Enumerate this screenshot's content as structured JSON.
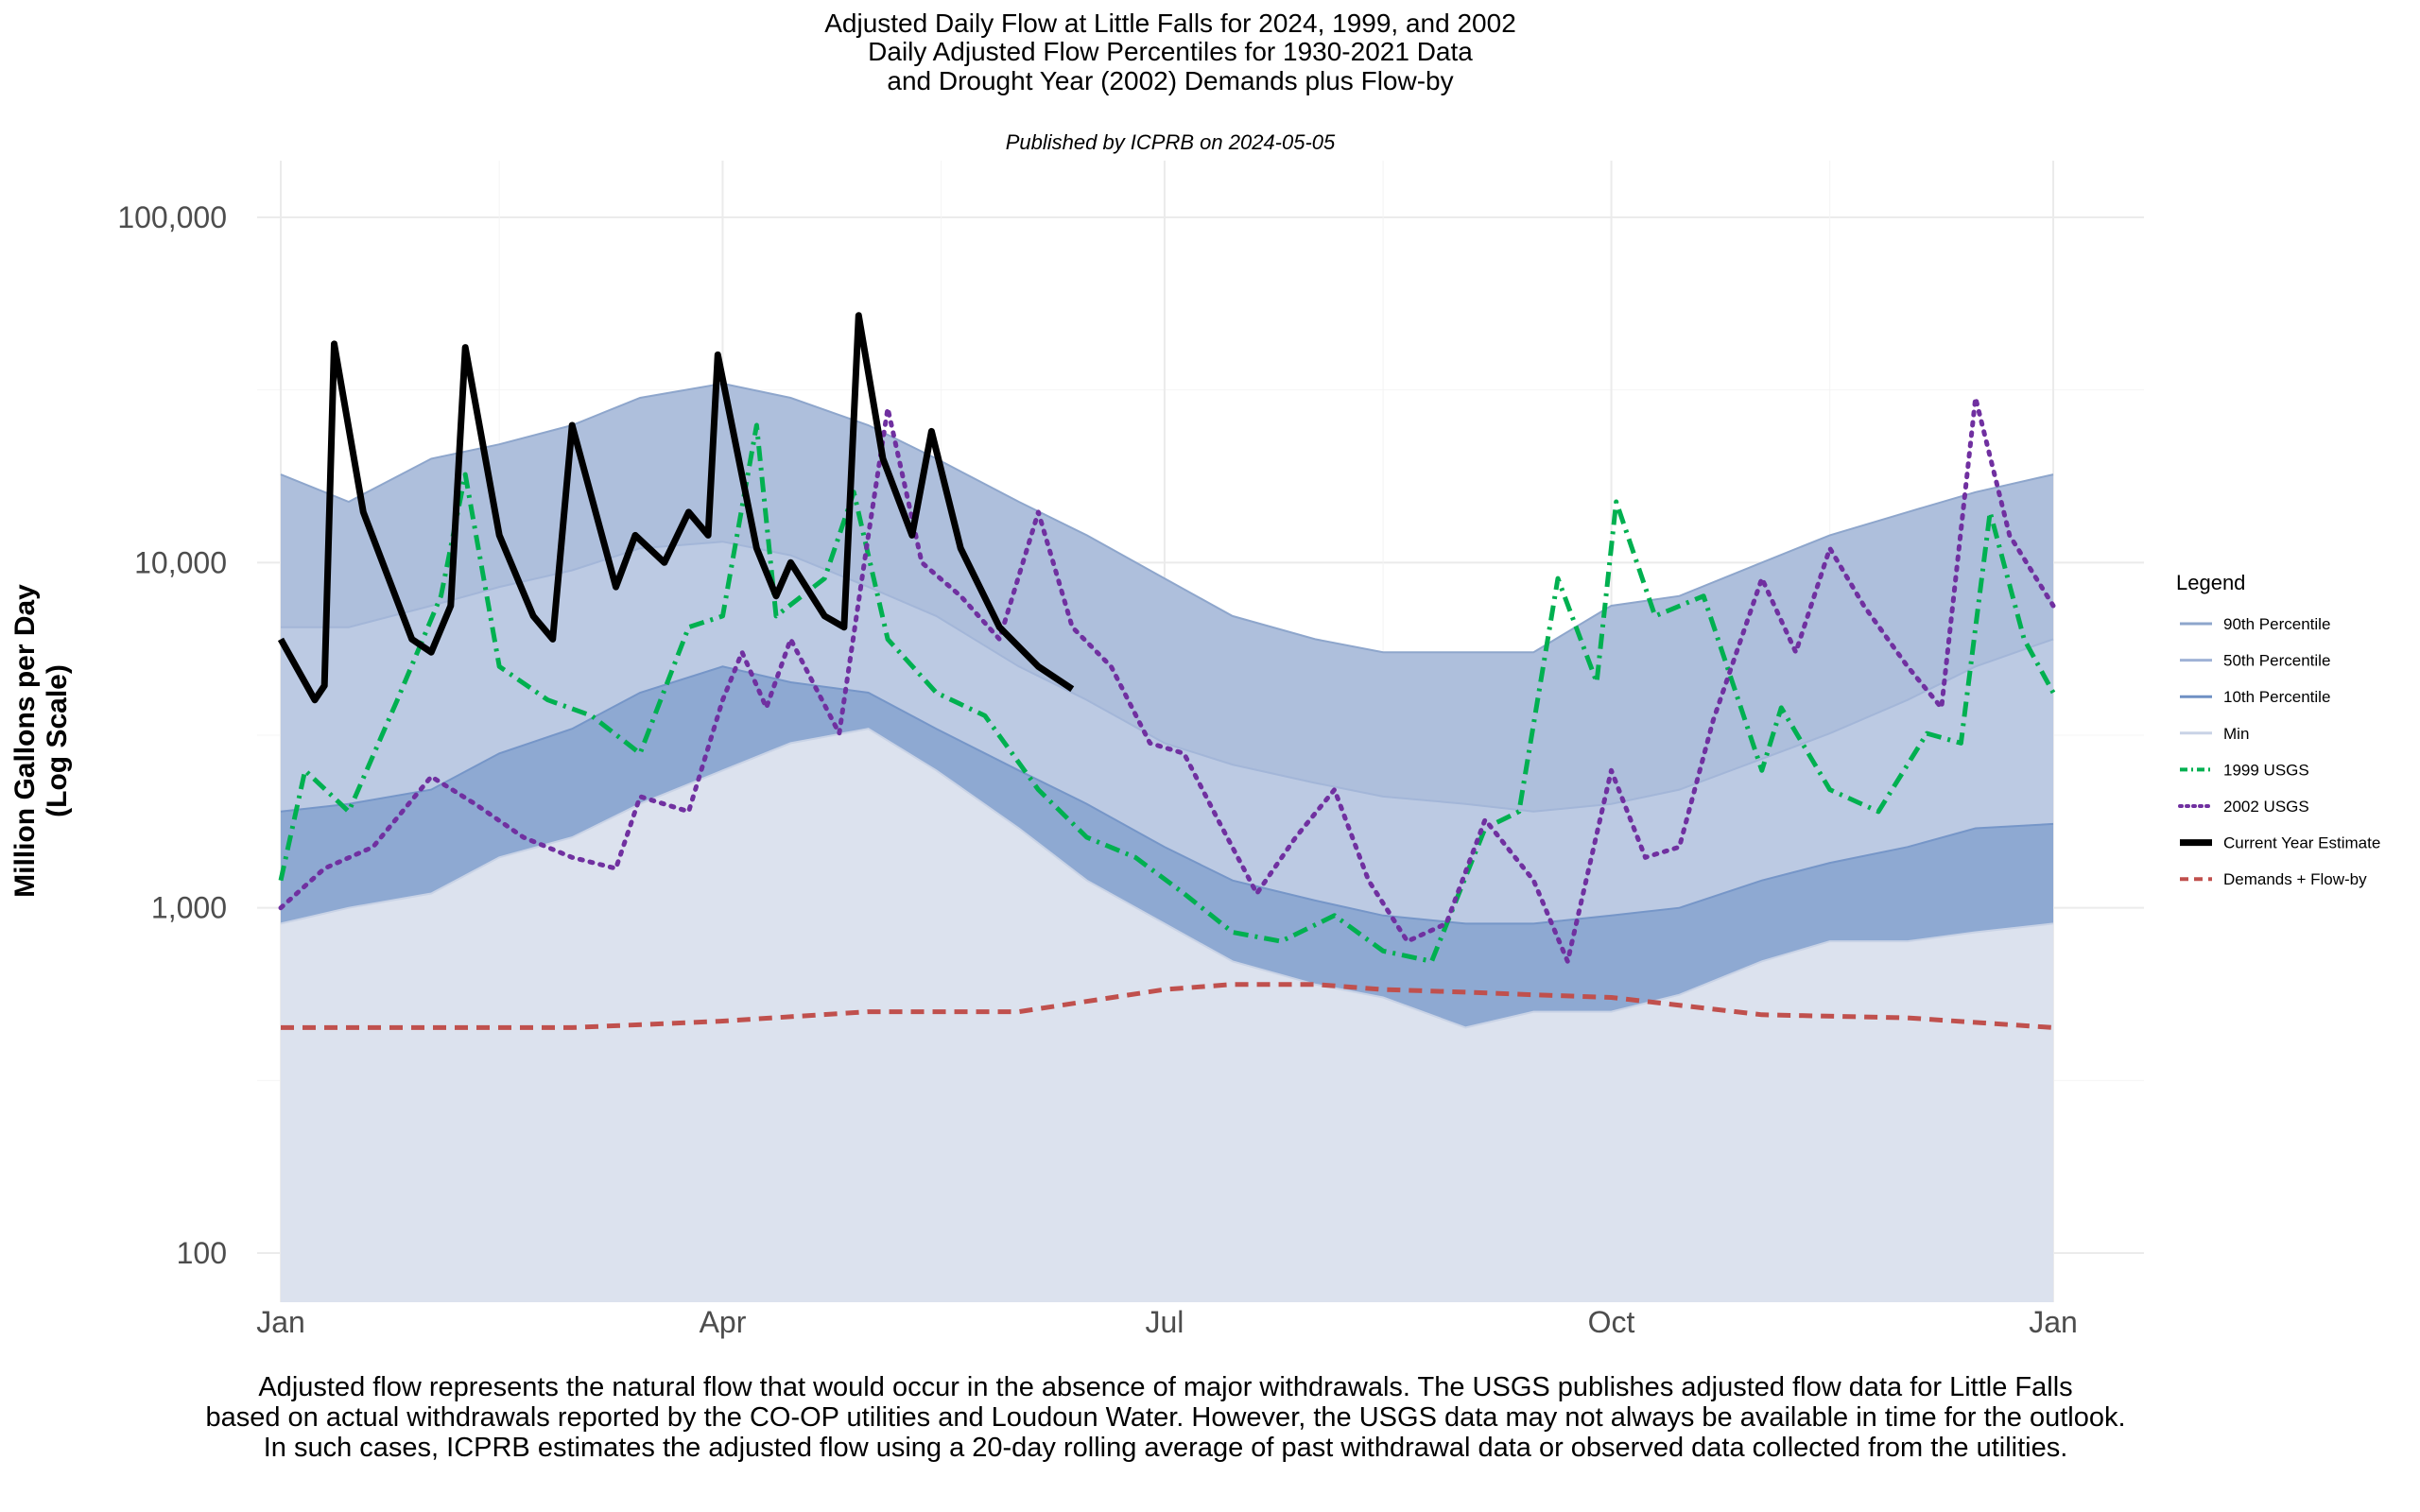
{
  "title_lines": [
    "Adjusted Daily Flow at Little Falls for 2024, 1999, and 2002",
    "Daily Adjusted Flow Percentiles for 1930-2021 Data",
    "and Drought Year (2002) Demands plus Flow-by"
  ],
  "subtitle": "Published by ICPRB on 2024-05-05",
  "caption_lines": [
    "Adjusted flow represents the natural flow that would occur in the absence of major withdrawals. The USGS publishes adjusted flow data for Little Falls",
    "based on actual withdrawals reported by the CO-OP utilities and Loudoun Water. However, the USGS data may not always be available in time for the outlook.",
    "In such cases, ICPRB estimates the adjusted flow using a 20-day rolling average of past withdrawal data or observed data collected from the utilities."
  ],
  "chart_data": {
    "type": "area",
    "ylabel": [
      "Million Gallons per Day",
      "(Log Scale)"
    ],
    "xlabel": "",
    "y_scale": "log",
    "ylim": [
      70,
      150000
    ],
    "xlim": [
      "2024-01-01",
      "2024-12-31"
    ],
    "grid": true,
    "y_ticks": [
      {
        "value": 100,
        "label": "100"
      },
      {
        "value": 1000,
        "label": "1,000"
      },
      {
        "value": 10000,
        "label": "10,000"
      },
      {
        "value": 100000,
        "label": "100,000"
      }
    ],
    "x_ticks": [
      {
        "date": "2024-01-01",
        "label": "Jan"
      },
      {
        "date": "2024-04-01",
        "label": "Apr"
      },
      {
        "date": "2024-07-01",
        "label": "Jul"
      },
      {
        "date": "2024-10-01",
        "label": "Oct"
      },
      {
        "date": "2024-12-31",
        "label": "Jan"
      }
    ],
    "legend": {
      "title": "Legend",
      "position": "right",
      "entries": [
        {
          "label": "90th Percentile",
          "color": "#8ea6cc",
          "style": "solid"
        },
        {
          "label": "50th Percentile",
          "color": "#9fb2d6",
          "style": "solid"
        },
        {
          "label": "10th Percentile",
          "color": "#6f90c4",
          "style": "solid"
        },
        {
          "label": "Min",
          "color": "#c9d3e6",
          "style": "solid"
        },
        {
          "label": "1999 USGS",
          "color": "#00b050",
          "style": "dotdash"
        },
        {
          "label": "2002 USGS",
          "color": "#7030a0",
          "style": "dotted"
        },
        {
          "label": "Current Year Estimate",
          "color": "#000000",
          "style": "solid-thick"
        },
        {
          "label": "Demands + Flow-by",
          "color": "#c0504d",
          "style": "dashed"
        }
      ]
    },
    "series": [
      {
        "name": "90th Percentile",
        "kind": "band",
        "points": [
          [
            "2024-01-01",
            18000
          ],
          [
            "2024-01-15",
            15000
          ],
          [
            "2024-02-01",
            20000
          ],
          [
            "2024-02-15",
            22000
          ],
          [
            "2024-03-01",
            25000
          ],
          [
            "2024-03-15",
            30000
          ],
          [
            "2024-04-01",
            33000
          ],
          [
            "2024-04-15",
            30000
          ],
          [
            "2024-05-01",
            25000
          ],
          [
            "2024-05-15",
            20000
          ],
          [
            "2024-06-01",
            15000
          ],
          [
            "2024-06-15",
            12000
          ],
          [
            "2024-07-01",
            9000
          ],
          [
            "2024-07-15",
            7000
          ],
          [
            "2024-08-01",
            6000
          ],
          [
            "2024-08-15",
            5500
          ],
          [
            "2024-09-01",
            5500
          ],
          [
            "2024-09-15",
            5500
          ],
          [
            "2024-10-01",
            7500
          ],
          [
            "2024-10-15",
            8000
          ],
          [
            "2024-11-01",
            10000
          ],
          [
            "2024-11-15",
            12000
          ],
          [
            "2024-12-01",
            14000
          ],
          [
            "2024-12-15",
            16000
          ],
          [
            "2024-12-31",
            18000
          ]
        ]
      },
      {
        "name": "50th Percentile",
        "kind": "band",
        "points": [
          [
            "2024-01-01",
            6500
          ],
          [
            "2024-01-15",
            6500
          ],
          [
            "2024-02-01",
            7500
          ],
          [
            "2024-02-15",
            8500
          ],
          [
            "2024-03-01",
            9500
          ],
          [
            "2024-03-15",
            11000
          ],
          [
            "2024-04-01",
            11500
          ],
          [
            "2024-04-15",
            10500
          ],
          [
            "2024-05-01",
            8500
          ],
          [
            "2024-05-15",
            7000
          ],
          [
            "2024-06-01",
            5000
          ],
          [
            "2024-06-15",
            4000
          ],
          [
            "2024-07-01",
            3000
          ],
          [
            "2024-07-15",
            2600
          ],
          [
            "2024-08-01",
            2300
          ],
          [
            "2024-08-15",
            2100
          ],
          [
            "2024-09-01",
            2000
          ],
          [
            "2024-09-15",
            1900
          ],
          [
            "2024-10-01",
            2000
          ],
          [
            "2024-10-15",
            2200
          ],
          [
            "2024-11-01",
            2700
          ],
          [
            "2024-11-15",
            3200
          ],
          [
            "2024-12-01",
            4000
          ],
          [
            "2024-12-15",
            5000
          ],
          [
            "2024-12-31",
            6000
          ]
        ]
      },
      {
        "name": "10th Percentile",
        "kind": "band",
        "points": [
          [
            "2024-01-01",
            1900
          ],
          [
            "2024-01-15",
            2000
          ],
          [
            "2024-02-01",
            2200
          ],
          [
            "2024-02-15",
            2800
          ],
          [
            "2024-03-01",
            3300
          ],
          [
            "2024-03-15",
            4200
          ],
          [
            "2024-04-01",
            5000
          ],
          [
            "2024-04-15",
            4500
          ],
          [
            "2024-05-01",
            4200
          ],
          [
            "2024-05-15",
            3300
          ],
          [
            "2024-06-01",
            2500
          ],
          [
            "2024-06-15",
            2000
          ],
          [
            "2024-07-01",
            1500
          ],
          [
            "2024-07-15",
            1200
          ],
          [
            "2024-08-01",
            1050
          ],
          [
            "2024-08-15",
            950
          ],
          [
            "2024-09-01",
            900
          ],
          [
            "2024-09-15",
            900
          ],
          [
            "2024-10-01",
            950
          ],
          [
            "2024-10-15",
            1000
          ],
          [
            "2024-11-01",
            1200
          ],
          [
            "2024-11-15",
            1350
          ],
          [
            "2024-12-01",
            1500
          ],
          [
            "2024-12-15",
            1700
          ],
          [
            "2024-12-31",
            1750
          ]
        ]
      },
      {
        "name": "Min",
        "kind": "band",
        "points": [
          [
            "2024-01-01",
            900
          ],
          [
            "2024-01-15",
            1000
          ],
          [
            "2024-02-01",
            1100
          ],
          [
            "2024-02-15",
            1400
          ],
          [
            "2024-03-01",
            1600
          ],
          [
            "2024-03-15",
            2000
          ],
          [
            "2024-04-01",
            2500
          ],
          [
            "2024-04-15",
            3000
          ],
          [
            "2024-05-01",
            3300
          ],
          [
            "2024-05-15",
            2500
          ],
          [
            "2024-06-01",
            1700
          ],
          [
            "2024-06-15",
            1200
          ],
          [
            "2024-07-01",
            900
          ],
          [
            "2024-07-15",
            700
          ],
          [
            "2024-08-01",
            600
          ],
          [
            "2024-08-15",
            550
          ],
          [
            "2024-09-01",
            450
          ],
          [
            "2024-09-15",
            500
          ],
          [
            "2024-10-01",
            500
          ],
          [
            "2024-10-15",
            560
          ],
          [
            "2024-11-01",
            700
          ],
          [
            "2024-11-15",
            800
          ],
          [
            "2024-12-01",
            800
          ],
          [
            "2024-12-15",
            850
          ],
          [
            "2024-12-31",
            900
          ]
        ]
      },
      {
        "name": "1999 USGS",
        "kind": "line",
        "points": [
          [
            "2024-01-01",
            1200
          ],
          [
            "2024-01-06",
            2500
          ],
          [
            "2024-01-15",
            1900
          ],
          [
            "2024-01-25",
            4000
          ],
          [
            "2024-02-03",
            8000
          ],
          [
            "2024-02-08",
            18000
          ],
          [
            "2024-02-15",
            5000
          ],
          [
            "2024-02-25",
            4000
          ],
          [
            "2024-03-05",
            3600
          ],
          [
            "2024-03-15",
            2800
          ],
          [
            "2024-03-25",
            6500
          ],
          [
            "2024-04-01",
            7000
          ],
          [
            "2024-04-08",
            25000
          ],
          [
            "2024-04-12",
            7000
          ],
          [
            "2024-04-22",
            9000
          ],
          [
            "2024-04-28",
            16000
          ],
          [
            "2024-05-05",
            6000
          ],
          [
            "2024-05-15",
            4200
          ],
          [
            "2024-05-25",
            3600
          ],
          [
            "2024-06-05",
            2200
          ],
          [
            "2024-06-15",
            1600
          ],
          [
            "2024-06-25",
            1400
          ],
          [
            "2024-07-05",
            1100
          ],
          [
            "2024-07-15",
            850
          ],
          [
            "2024-07-25",
            800
          ],
          [
            "2024-08-05",
            950
          ],
          [
            "2024-08-15",
            750
          ],
          [
            "2024-08-25",
            700
          ],
          [
            "2024-09-05",
            1700
          ],
          [
            "2024-09-12",
            1900
          ],
          [
            "2024-09-20",
            9000
          ],
          [
            "2024-09-28",
            4500
          ],
          [
            "2024-10-02",
            15000
          ],
          [
            "2024-10-10",
            7000
          ],
          [
            "2024-10-20",
            8000
          ],
          [
            "2024-11-01",
            2500
          ],
          [
            "2024-11-05",
            3800
          ],
          [
            "2024-11-15",
            2200
          ],
          [
            "2024-11-25",
            1900
          ],
          [
            "2024-12-05",
            3200
          ],
          [
            "2024-12-12",
            3000
          ],
          [
            "2024-12-18",
            14000
          ],
          [
            "2024-12-25",
            6000
          ],
          [
            "2024-12-31",
            4200
          ]
        ]
      },
      {
        "name": "2002 USGS",
        "kind": "line",
        "points": [
          [
            "2024-01-01",
            1000
          ],
          [
            "2024-01-10",
            1300
          ],
          [
            "2024-01-20",
            1500
          ],
          [
            "2024-02-01",
            2400
          ],
          [
            "2024-02-10",
            2000
          ],
          [
            "2024-02-20",
            1600
          ],
          [
            "2024-03-01",
            1400
          ],
          [
            "2024-03-10",
            1300
          ],
          [
            "2024-03-15",
            2100
          ],
          [
            "2024-03-25",
            1900
          ],
          [
            "2024-04-01",
            4000
          ],
          [
            "2024-04-05",
            5500
          ],
          [
            "2024-04-10",
            3800
          ],
          [
            "2024-04-15",
            6000
          ],
          [
            "2024-04-25",
            3200
          ],
          [
            "2024-05-01",
            12000
          ],
          [
            "2024-05-05",
            28000
          ],
          [
            "2024-05-12",
            10000
          ],
          [
            "2024-05-20",
            8000
          ],
          [
            "2024-05-28",
            6000
          ],
          [
            "2024-06-05",
            14000
          ],
          [
            "2024-06-12",
            6500
          ],
          [
            "2024-06-20",
            5000
          ],
          [
            "2024-06-28",
            3000
          ],
          [
            "2024-07-05",
            2800
          ],
          [
            "2024-07-12",
            1800
          ],
          [
            "2024-07-20",
            1100
          ],
          [
            "2024-07-28",
            1600
          ],
          [
            "2024-08-05",
            2200
          ],
          [
            "2024-08-12",
            1200
          ],
          [
            "2024-08-20",
            800
          ],
          [
            "2024-08-28",
            900
          ],
          [
            "2024-09-05",
            1800
          ],
          [
            "2024-09-15",
            1200
          ],
          [
            "2024-09-22",
            700
          ],
          [
            "2024-10-01",
            2500
          ],
          [
            "2024-10-08",
            1400
          ],
          [
            "2024-10-15",
            1500
          ],
          [
            "2024-10-22",
            3500
          ],
          [
            "2024-11-01",
            9000
          ],
          [
            "2024-11-08",
            5500
          ],
          [
            "2024-11-15",
            11000
          ],
          [
            "2024-11-22",
            7500
          ],
          [
            "2024-12-01",
            5000
          ],
          [
            "2024-12-08",
            3800
          ],
          [
            "2024-12-15",
            30000
          ],
          [
            "2024-12-22",
            12000
          ],
          [
            "2024-12-31",
            7500
          ]
        ]
      },
      {
        "name": "Current Year Estimate",
        "kind": "line",
        "points": [
          [
            "2024-01-01",
            6000
          ],
          [
            "2024-01-08",
            4000
          ],
          [
            "2024-01-10",
            4400
          ],
          [
            "2024-01-12",
            43000
          ],
          [
            "2024-01-18",
            14000
          ],
          [
            "2024-01-28",
            6000
          ],
          [
            "2024-02-01",
            5500
          ],
          [
            "2024-02-05",
            7500
          ],
          [
            "2024-02-08",
            42000
          ],
          [
            "2024-02-15",
            12000
          ],
          [
            "2024-02-22",
            7000
          ],
          [
            "2024-02-26",
            6000
          ],
          [
            "2024-03-01",
            25000
          ],
          [
            "2024-03-10",
            8500
          ],
          [
            "2024-03-14",
            12000
          ],
          [
            "2024-03-20",
            10000
          ],
          [
            "2024-03-25",
            14000
          ],
          [
            "2024-03-29",
            12000
          ],
          [
            "2024-03-31",
            40000
          ],
          [
            "2024-04-08",
            11000
          ],
          [
            "2024-04-12",
            8000
          ],
          [
            "2024-04-15",
            10000
          ],
          [
            "2024-04-22",
            7000
          ],
          [
            "2024-04-26",
            6500
          ],
          [
            "2024-04-29",
            52000
          ],
          [
            "2024-05-04",
            20000
          ],
          [
            "2024-05-10",
            12000
          ],
          [
            "2024-05-14",
            24000
          ],
          [
            "2024-05-20",
            11000
          ],
          [
            "2024-05-28",
            6500
          ],
          [
            "2024-06-05",
            5000
          ],
          [
            "2024-06-12",
            4300
          ]
        ]
      },
      {
        "name": "Demands + Flow-by",
        "kind": "line",
        "points": [
          [
            "2024-01-01",
            450
          ],
          [
            "2024-02-01",
            450
          ],
          [
            "2024-03-01",
            450
          ],
          [
            "2024-04-01",
            470
          ],
          [
            "2024-05-01",
            500
          ],
          [
            "2024-06-01",
            500
          ],
          [
            "2024-07-01",
            580
          ],
          [
            "2024-07-15",
            600
          ],
          [
            "2024-08-01",
            600
          ],
          [
            "2024-08-15",
            580
          ],
          [
            "2024-09-01",
            570
          ],
          [
            "2024-09-15",
            560
          ],
          [
            "2024-10-01",
            550
          ],
          [
            "2024-11-01",
            490
          ],
          [
            "2024-12-01",
            480
          ],
          [
            "2024-12-31",
            450
          ]
        ]
      }
    ]
  }
}
